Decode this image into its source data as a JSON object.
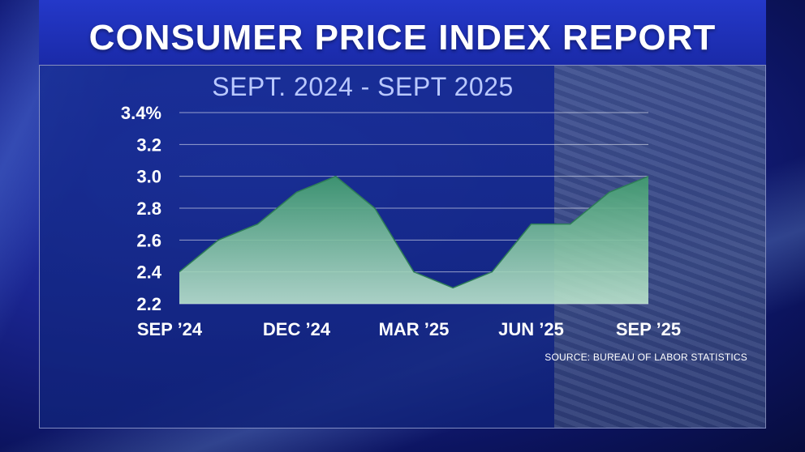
{
  "header": {
    "title": "CONSUMER PRICE INDEX REPORT"
  },
  "chart_data": {
    "type": "area",
    "subtitle": "SEPT. 2024 - SEPT 2025",
    "x": [
      "Sep 2024",
      "Oct 2024",
      "Nov 2024",
      "Dec 2024",
      "Jan 2025",
      "Feb 2025",
      "Mar 2025",
      "Apr 2025",
      "May 2025",
      "Jun 2025",
      "Jul 2025",
      "Aug 2025",
      "Sep 2025"
    ],
    "series": [
      {
        "values": [
          2.4,
          2.6,
          2.7,
          2.9,
          3.0,
          2.8,
          2.4,
          2.3,
          2.4,
          2.7,
          2.7,
          2.9,
          3.0
        ]
      }
    ],
    "y_ticks": [
      "3.4%",
      "3.2",
      "3.0",
      "2.8",
      "2.6",
      "2.4",
      "2.2"
    ],
    "x_ticks": [
      {
        "label": "SEP ’24",
        "index": 0
      },
      {
        "label": "DEC ’24",
        "index": 3
      },
      {
        "label": "MAR ’25",
        "index": 6
      },
      {
        "label": "JUN ’25",
        "index": 9
      },
      {
        "label": "SEP ’25",
        "index": 12
      }
    ],
    "ylim": [
      2.2,
      3.4
    ],
    "grid": true,
    "fill_color_top": "#3f9a6e",
    "fill_color_bottom": "#bfe8cf",
    "source": "SOURCE: BUREAU OF LABOR STATISTICS"
  }
}
